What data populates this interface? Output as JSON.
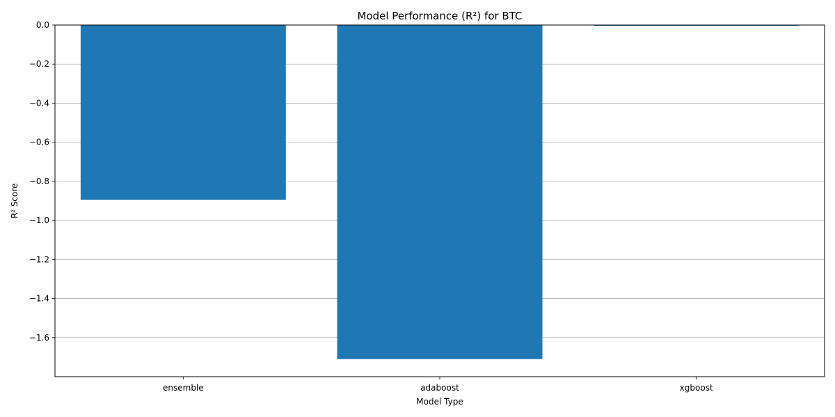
{
  "colors": {
    "bar": "#1f77b4",
    "grid": "#b0b0b0",
    "axis": "#000000",
    "background": "#ffffff"
  },
  "chart_data": {
    "type": "bar",
    "title": "Model Performance (R²) for BTC",
    "xlabel": "Model Type",
    "ylabel": "R² Score",
    "categories": [
      "ensemble",
      "adaboost",
      "xgboost"
    ],
    "values": [
      -0.895,
      -1.71,
      -0.004
    ],
    "ylim": [
      -1.8,
      0.0
    ],
    "yticks": [
      0.0,
      -0.2,
      -0.4,
      -0.6,
      -0.8,
      -1.0,
      -1.2,
      -1.4,
      -1.6
    ],
    "ytick_labels": [
      "0.0",
      "−0.2",
      "−0.4",
      "−0.6",
      "−0.8",
      "−1.0",
      "−1.2",
      "−1.4",
      "−1.6"
    ],
    "grid": "y-axis only",
    "legend": "none"
  }
}
